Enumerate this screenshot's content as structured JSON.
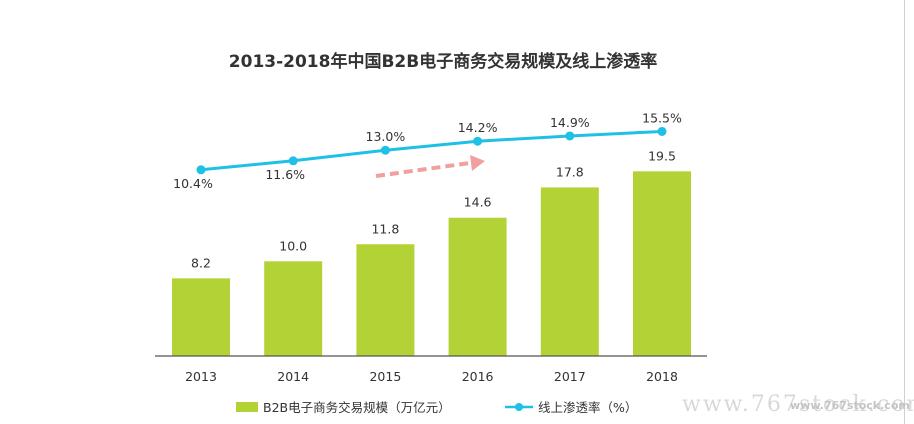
{
  "chart_data": {
    "type": "bar+line",
    "title": "2013-2018年中国B2B电子商务交易规模及线上渗透率",
    "categories": [
      "2013",
      "2014",
      "2015",
      "2016",
      "2017",
      "2018"
    ],
    "series": [
      {
        "name": "B2B电子商务交易规模（万亿元）",
        "type": "bar",
        "values": [
          8.2,
          10.0,
          11.8,
          14.6,
          17.8,
          19.5
        ],
        "labels": [
          "8.2",
          "10.0",
          "11.8",
          "14.6",
          "17.8",
          "19.5"
        ],
        "color": "#b2d235"
      },
      {
        "name": "线上渗透率（%）",
        "type": "line",
        "values": [
          10.4,
          11.6,
          13.0,
          14.2,
          14.9,
          15.5
        ],
        "labels": [
          "10.4%",
          "11.6%",
          "13.0%",
          "14.2%",
          "14.9%",
          "15.5%"
        ],
        "color": "#1fc0e6"
      }
    ],
    "ylim_bar": [
      0,
      20
    ],
    "ylim_line": [
      0,
      20
    ],
    "grid": false,
    "legend": "bottom",
    "annotations": [
      "upward-trend-arrow"
    ],
    "arrow_color": "#f0a0a0"
  },
  "watermark": "www.767stock.com"
}
